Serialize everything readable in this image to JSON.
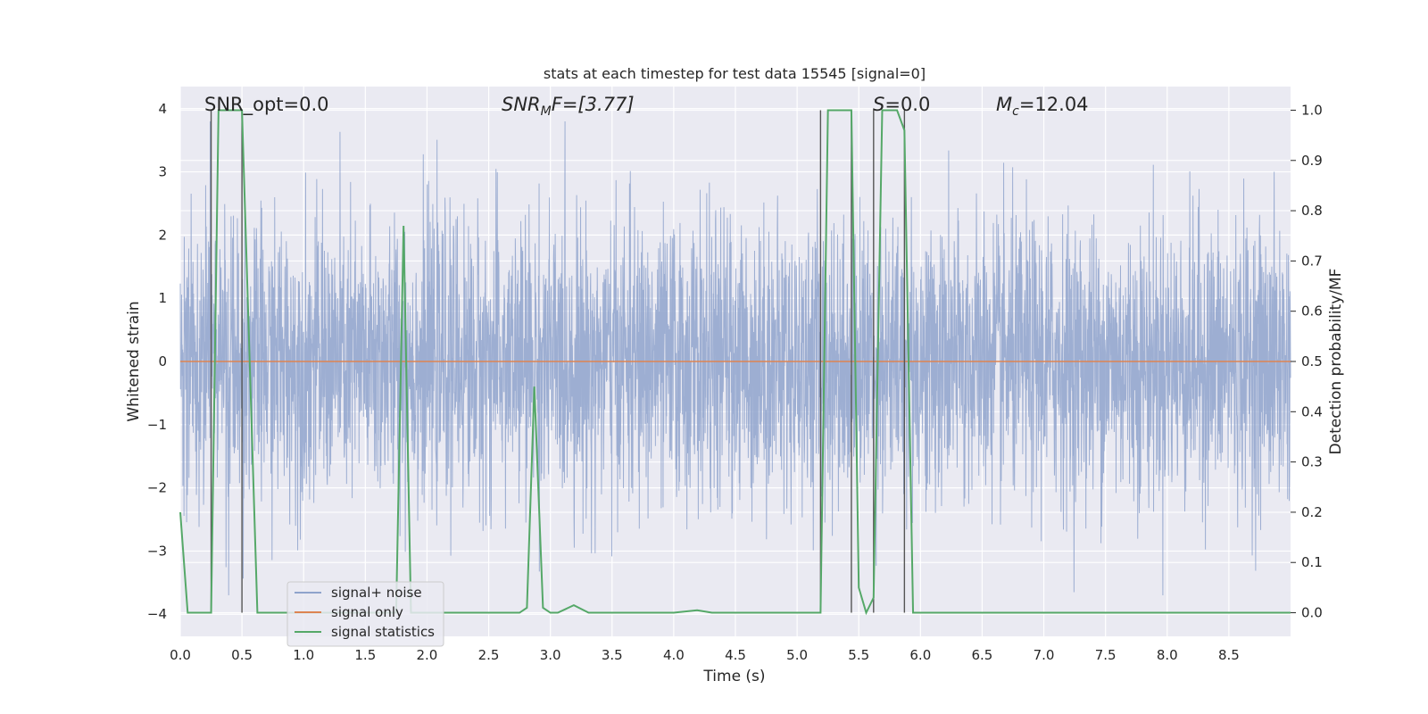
{
  "chart_data": {
    "type": "line",
    "title": "stats at each timestep for test data 15545 [signal=0]",
    "xlabel": "Time (s)",
    "ylabel": "Whitened strain",
    "ylabel_right": "Detection probability/MF",
    "xlim": [
      0,
      9.0
    ],
    "ylim": [
      -4.35,
      4.35
    ],
    "ylim_right": [
      -0.047,
      1.047
    ],
    "x_ticks": [
      "0.0",
      "0.5",
      "1.0",
      "1.5",
      "2.0",
      "2.5",
      "3.0",
      "3.5",
      "4.0",
      "4.5",
      "5.0",
      "5.5",
      "6.0",
      "6.5",
      "7.0",
      "7.5",
      "8.0",
      "8.5"
    ],
    "y_ticks": [
      "4",
      "3",
      "2",
      "1",
      "0",
      "−1",
      "−2",
      "−3",
      "−4"
    ],
    "y_ticks_right": [
      "1.0",
      "0.9",
      "0.8",
      "0.7",
      "0.6",
      "0.5",
      "0.4",
      "0.3",
      "0.2",
      "0.1",
      "0.0"
    ],
    "grid": true,
    "legend": {
      "placement": "lower-left",
      "entries": [
        {
          "name": "signal+ noise",
          "color": "#8fa3cc"
        },
        {
          "name": "signal only",
          "color": "#dd8452"
        },
        {
          "name": "signal statistics",
          "color": "#55a868"
        }
      ]
    },
    "annotations": {
      "snr_opt": "SNR_opt=0.0",
      "snr_mf_base": "SNR",
      "snr_mf_sub": "M",
      "snr_mf_rest": "F=[3.77]",
      "s_label": "S",
      "s_value": "=0.0",
      "mc_base": "M",
      "mc_sub": "c",
      "mc_value": "=12.04"
    },
    "series": [
      {
        "name": "signal+ noise",
        "color": "#8fa3cc",
        "description_range": [
          -3.7,
          3.8
        ],
        "noise_std": 1.0
      },
      {
        "name": "signal only",
        "color": "#dd8452",
        "x": [
          0,
          9.0
        ],
        "y": [
          0,
          0
        ]
      },
      {
        "name": "signal statistics",
        "color": "#55a868",
        "axis": "right",
        "x": [
          0.0,
          0.06,
          0.25,
          0.31,
          0.5,
          0.625,
          1.0,
          1.75,
          1.81,
          1.87,
          2.0,
          2.75,
          2.81,
          2.87,
          2.94,
          3.0,
          3.06,
          3.19,
          3.31,
          4.0,
          4.19,
          4.31,
          5.19,
          5.25,
          5.44,
          5.5,
          5.56,
          5.62,
          5.69,
          5.81,
          5.87,
          5.94,
          6.0,
          9.0
        ],
        "y": [
          0.2,
          0.0,
          0.0,
          1.0,
          1.0,
          0.0,
          0.0,
          0.0,
          0.77,
          0.0,
          0.0,
          0.0,
          0.01,
          0.45,
          0.01,
          0.0,
          0.0,
          0.015,
          0.0,
          0.0,
          0.005,
          0.0,
          0.0,
          1.0,
          1.0,
          0.05,
          0.0,
          0.03,
          1.0,
          1.0,
          0.96,
          0.0,
          0.0,
          0.0
        ]
      }
    ],
    "vertical_markers_x": [
      0.25,
      0.5,
      5.19,
      5.44,
      5.62,
      5.87
    ]
  }
}
